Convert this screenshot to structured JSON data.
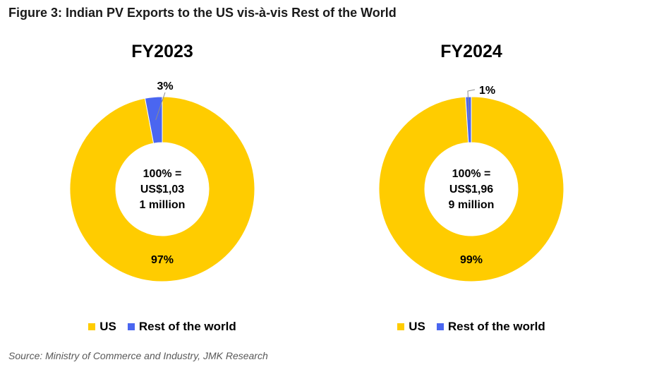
{
  "title": "Figure 3: Indian PV Exports to the US vis-à-vis Rest of the World",
  "source": "Source: Ministry of Commerce and Industry, JMK Research",
  "colors": {
    "US": "#FFCC00",
    "Rest of the world": "#4A66F0"
  },
  "legend_labels": [
    "US",
    "Rest of the world"
  ],
  "chart_data": [
    {
      "type": "pie",
      "style": "donut",
      "title": "FY2023",
      "labels": [
        "US",
        "Rest of the world"
      ],
      "values": [
        97,
        3
      ],
      "data_labels": [
        "97%",
        "3%"
      ],
      "center_label": [
        "100% =",
        "US$1,03",
        "1 million"
      ]
    },
    {
      "type": "pie",
      "style": "donut",
      "title": "FY2024",
      "labels": [
        "US",
        "Rest of the world"
      ],
      "values": [
        99,
        1
      ],
      "data_labels": [
        "99%",
        "1%"
      ],
      "center_label": [
        "100% =",
        "US$1,96",
        "9 million"
      ]
    }
  ]
}
